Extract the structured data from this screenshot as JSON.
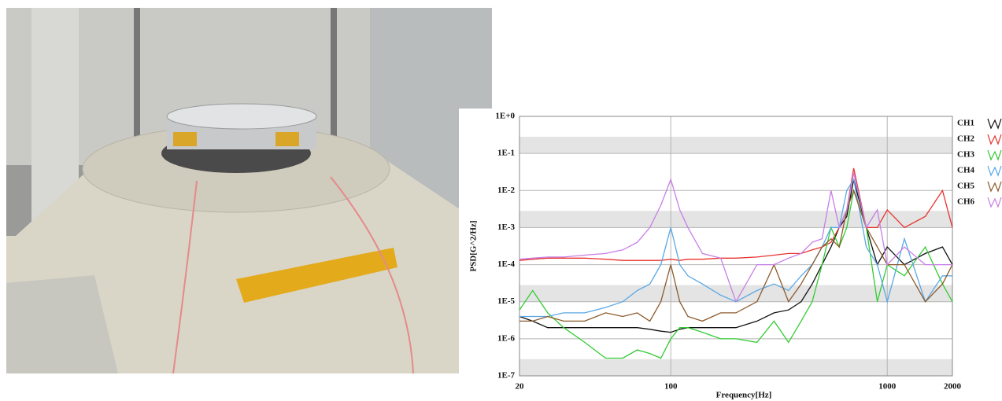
{
  "chart_data": {
    "type": "line",
    "log_x": true,
    "log_y": true,
    "grid": true,
    "x_label": "Frequency[Hz]",
    "y_label": "PSD[G^2/Hz]",
    "legend": "right",
    "xlim": [
      20,
      2000
    ],
    "xticks": [
      20,
      100,
      1000,
      2000
    ],
    "ylim": [
      1e-07,
      1
    ],
    "yticks": [
      {
        "value": 1e-07,
        "label": "1E-7"
      },
      {
        "value": 1e-06,
        "label": "1E-6"
      },
      {
        "value": 1e-05,
        "label": "1E-5"
      },
      {
        "value": 0.0001,
        "label": "1E-4"
      },
      {
        "value": 0.001,
        "label": "1E-3"
      },
      {
        "value": 0.01,
        "label": "1E-2"
      },
      {
        "value": 0.1,
        "label": "1E-1"
      },
      {
        "value": 1,
        "label": "1E+0"
      }
    ],
    "x": [
      20,
      23,
      27,
      32,
      40,
      50,
      60,
      70,
      80,
      90,
      100,
      110,
      120,
      140,
      170,
      200,
      250,
      300,
      350,
      400,
      450,
      500,
      550,
      600,
      650,
      700,
      800,
      900,
      1000,
      1200,
      1500,
      1800,
      2000
    ],
    "series": [
      {
        "name": "CH1",
        "color": "#111111",
        "values": [
          4e-06,
          3e-06,
          2e-06,
          2e-06,
          2e-06,
          2e-06,
          2e-06,
          2e-06,
          1.8e-06,
          1.6e-06,
          1.5e-06,
          1.8e-06,
          2e-06,
          2e-06,
          2e-06,
          2e-06,
          3e-06,
          5e-06,
          6e-06,
          1e-05,
          3e-05,
          0.0001,
          0.0003,
          0.001,
          0.002,
          0.02,
          0.001,
          0.0001,
          0.0003,
          0.0001,
          0.0002,
          0.0003,
          0.0001
        ]
      },
      {
        "name": "CH2",
        "color": "#e8332f",
        "values": [
          0.00013,
          0.00014,
          0.00015,
          0.00015,
          0.00015,
          0.00014,
          0.00013,
          0.00013,
          0.00013,
          0.00013,
          0.00014,
          0.00013,
          0.00014,
          0.00014,
          0.00015,
          0.00015,
          0.00016,
          0.00018,
          0.0002,
          0.0002,
          0.00025,
          0.0003,
          0.0004,
          0.001,
          0.003,
          0.04,
          0.001,
          0.001,
          0.003,
          0.001,
          0.002,
          0.01,
          0.001
        ]
      },
      {
        "name": "CH3",
        "color": "#33cc33",
        "values": [
          6e-06,
          2e-05,
          5e-06,
          2e-06,
          8e-07,
          3e-07,
          3e-07,
          5e-07,
          4e-07,
          3e-07,
          1e-06,
          2e-06,
          2e-06,
          1.5e-06,
          1e-06,
          1e-06,
          8e-07,
          3e-06,
          8e-07,
          3e-06,
          1e-05,
          0.0001,
          0.001,
          0.0003,
          0.001,
          0.01,
          0.001,
          1e-05,
          0.0001,
          5e-05,
          0.0003,
          3e-05,
          1e-05
        ]
      },
      {
        "name": "CH4",
        "color": "#5aa8e6",
        "values": [
          4e-06,
          4e-06,
          4e-06,
          5e-06,
          5e-06,
          7e-06,
          1e-05,
          2e-05,
          3e-05,
          0.0001,
          0.001,
          0.0001,
          5e-05,
          3e-05,
          1.5e-05,
          1e-05,
          2e-05,
          3e-05,
          2e-05,
          5e-05,
          0.0001,
          0.0003,
          0.001,
          0.001,
          0.01,
          0.02,
          0.0003,
          0.0001,
          1e-05,
          0.0005,
          1e-05,
          5e-05,
          5e-05
        ]
      },
      {
        "name": "CH5",
        "color": "#8b5a2b",
        "values": [
          3e-06,
          3e-06,
          4e-06,
          3e-06,
          3e-06,
          5e-06,
          4e-06,
          5e-06,
          3e-06,
          1e-05,
          0.0001,
          1e-05,
          4e-06,
          3e-06,
          5e-06,
          5e-06,
          1e-05,
          0.0001,
          1e-05,
          3e-05,
          0.0001,
          0.0003,
          0.0005,
          0.0003,
          0.003,
          0.01,
          0.001,
          0.0003,
          0.0001,
          0.0001,
          1e-05,
          3e-05,
          0.0001
        ]
      },
      {
        "name": "CH6",
        "color": "#c77ee6",
        "values": [
          0.00014,
          0.00015,
          0.00016,
          0.00016,
          0.00018,
          0.0002,
          0.00025,
          0.0004,
          0.001,
          0.004,
          0.02,
          0.003,
          0.001,
          0.0002,
          0.00015,
          1e-05,
          0.0001,
          0.0001,
          0.00015,
          0.0002,
          0.0004,
          0.0005,
          0.01,
          0.001,
          0.003,
          0.03,
          0.001,
          0.003,
          0.0001,
          0.0003,
          0.0001,
          0.0001,
          0.0001
        ]
      }
    ]
  }
}
